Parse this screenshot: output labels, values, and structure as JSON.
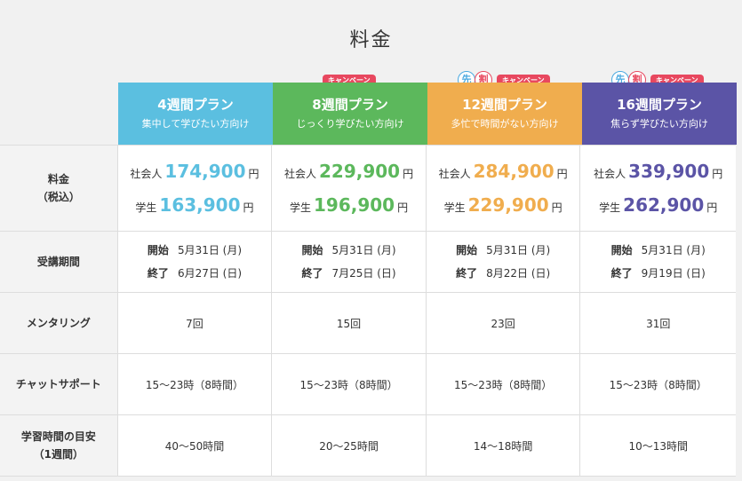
{
  "title": "料金",
  "badges": {
    "campaign": "キャンペーン",
    "early_char": "先",
    "discount_char": "割"
  },
  "plans": [
    {
      "name": "4週間プラン",
      "sub": "集中して学びたい方向け",
      "color": "#5bbfe0",
      "price_work": "174,900",
      "price_student": "163,900",
      "start": "5月31日 (月)",
      "end": "6月27日 (日)",
      "mentoring": "7回",
      "chat": "15〜23時（8時間）",
      "study": "40〜50時間"
    },
    {
      "name": "8週間プラン",
      "sub": "じっくり学びたい方向け",
      "color": "#5cb85c",
      "price_work": "229,900",
      "price_student": "196,900",
      "start": "5月31日 (月)",
      "end": "7月25日 (日)",
      "mentoring": "15回",
      "chat": "15〜23時（8時間）",
      "study": "20〜25時間"
    },
    {
      "name": "12週間プラン",
      "sub": "多忙で時間がない方向け",
      "color": "#f0ad4e",
      "price_work": "284,900",
      "price_student": "229,900",
      "start": "5月31日 (月)",
      "end": "8月22日 (日)",
      "mentoring": "23回",
      "chat": "15〜23時（8時間）",
      "study": "14〜18時間"
    },
    {
      "name": "16週間プラン",
      "sub": "焦らず学びたい方向け",
      "color": "#5b54a6",
      "price_work": "339,900",
      "price_student": "262,900",
      "start": "5月31日 (月)",
      "end": "9月19日 (日)",
      "mentoring": "31回",
      "chat": "15〜23時（8時間）",
      "study": "10〜13時間"
    }
  ],
  "labels": {
    "price_row": "料金",
    "price_row_sub": "（税込）",
    "period_row": "受講期間",
    "mentoring_row": "メンタリング",
    "chat_row": "チャットサポート",
    "study_row": "学習時間の目安",
    "study_row_sub": "（1週間）",
    "worker": "社会人",
    "student": "学生",
    "yen": "円",
    "start": "開始",
    "end": "終了"
  }
}
